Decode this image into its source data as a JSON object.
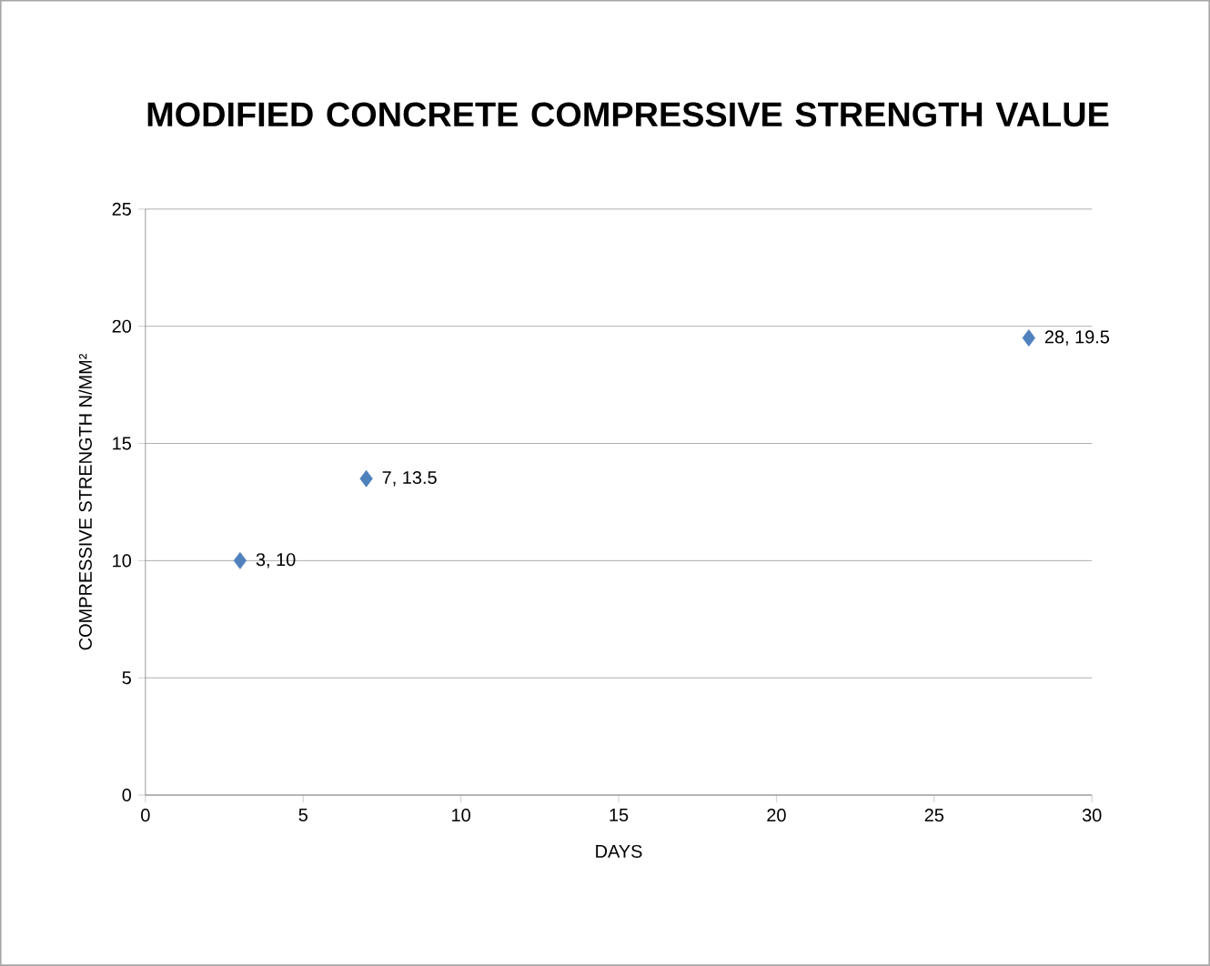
{
  "chart_data": {
    "type": "scatter",
    "title": "MODIFIED CONCRETE COMPRESSIVE STRENGTH VALUE",
    "xlabel": "DAYS",
    "ylabel": "COMPRESSIVE STRENGTH  N/MM²",
    "x": [
      3,
      7,
      28
    ],
    "series": [
      {
        "color": "#4f81bd",
        "values": [
          10,
          13.5,
          19.5
        ],
        "value_labels": [
          "3, 10",
          "7, 13.5",
          "28, 19.5"
        ]
      }
    ],
    "xlim": [
      0,
      30
    ],
    "ylim": [
      0,
      25
    ],
    "xticks": [
      0,
      5,
      10,
      15,
      20,
      25,
      30
    ],
    "yticks": [
      0,
      5,
      10,
      15,
      20,
      25
    ],
    "grid": "y",
    "marker": "diamond"
  }
}
